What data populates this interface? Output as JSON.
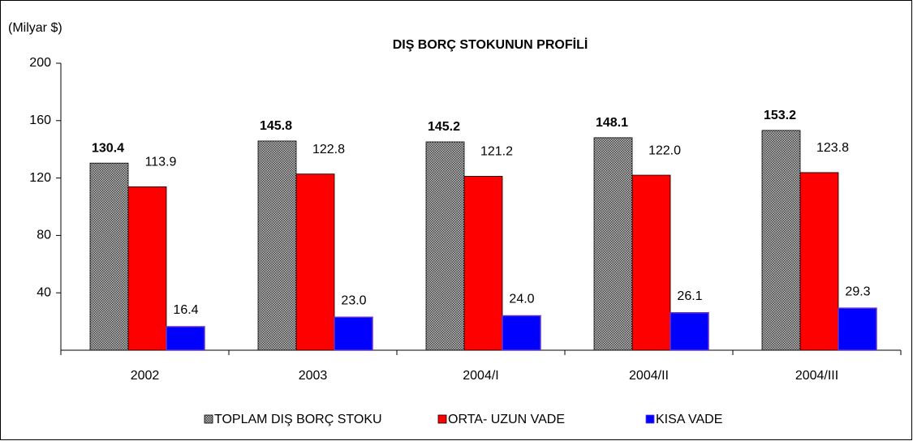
{
  "chart_data": {
    "type": "bar",
    "title": "DIŞ BORÇ STOKUNUN PROFİLİ",
    "y_axis_label": "(Milyar $)",
    "categories": [
      "2002",
      "2003",
      "2004/I",
      "2004/II",
      "2004/III"
    ],
    "series": [
      {
        "name": "TOPLAM DIŞ BORÇ STOKU",
        "color": "#808080",
        "values": [
          130.4,
          145.8,
          145.2,
          148.1,
          153.2
        ],
        "value_labels": [
          "130.4",
          "145.8",
          "145.2",
          "148.1",
          "153.2"
        ]
      },
      {
        "name": "ORTA- UZUN VADE",
        "color": "#ff0000",
        "values": [
          113.9,
          122.8,
          121.2,
          122.0,
          123.8
        ],
        "value_labels": [
          "113.9",
          "122.8",
          "121.2",
          "122.0",
          "123.8"
        ]
      },
      {
        "name": "KISA VADE",
        "color": "#0000ff",
        "values": [
          16.4,
          23.0,
          24.0,
          26.1,
          29.3
        ],
        "value_labels": [
          "16.4",
          "23.0",
          "24.0",
          "26.1",
          "29.3"
        ]
      }
    ],
    "ylim": [
      0,
      200
    ],
    "yticks": [
      40,
      80,
      120,
      160,
      200
    ],
    "legend": "bottom"
  }
}
